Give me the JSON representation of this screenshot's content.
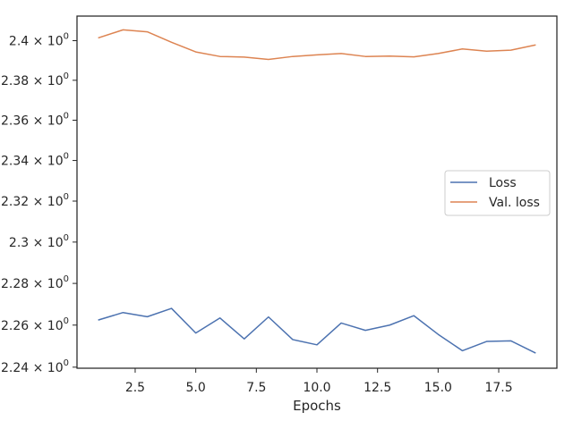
{
  "chart_data": {
    "type": "line",
    "title": "",
    "xlabel": "Epochs",
    "ylabel": "",
    "xlim": [
      0.1,
      19.9
    ],
    "ylim": [
      2.2395,
      2.4125
    ],
    "yscale": "log",
    "grid": false,
    "legend_position": "center-right",
    "x_ticks": [
      {
        "value": 2.5,
        "label": "2.5"
      },
      {
        "value": 5.0,
        "label": "5.0"
      },
      {
        "value": 7.5,
        "label": "7.5"
      },
      {
        "value": 10.0,
        "label": "10.0"
      },
      {
        "value": 12.5,
        "label": "12.5"
      },
      {
        "value": 15.0,
        "label": "15.0"
      },
      {
        "value": 17.5,
        "label": "17.5"
      }
    ],
    "y_ticks": [
      {
        "value": 2.24,
        "mantissa": "2.24"
      },
      {
        "value": 2.26,
        "mantissa": "2.26"
      },
      {
        "value": 2.28,
        "mantissa": "2.28"
      },
      {
        "value": 2.3,
        "mantissa": "2.3"
      },
      {
        "value": 2.32,
        "mantissa": "2.32"
      },
      {
        "value": 2.34,
        "mantissa": "2.34"
      },
      {
        "value": 2.36,
        "mantissa": "2.36"
      },
      {
        "value": 2.38,
        "mantissa": "2.38"
      },
      {
        "value": 2.4,
        "mantissa": "2.4"
      }
    ],
    "y_tick_multiplier": "×",
    "y_tick_base": "10",
    "y_tick_exponent": "0",
    "x": [
      1,
      2,
      3,
      4,
      5,
      6,
      7,
      8,
      9,
      10,
      11,
      12,
      13,
      14,
      15,
      16,
      17,
      18,
      19
    ],
    "series": [
      {
        "name": "Loss",
        "color": "#4c72b0",
        "values": [
          2.2625,
          2.266,
          2.264,
          2.268,
          2.2562,
          2.2634,
          2.2534,
          2.2639,
          2.2531,
          2.2506,
          2.261,
          2.2575,
          2.26,
          2.2645,
          2.2556,
          2.2478,
          2.2522,
          2.2525,
          2.2468
        ]
      },
      {
        "name": "Val. loss",
        "color": "#dd8452",
        "values": [
          2.4015,
          2.4055,
          2.4045,
          2.3992,
          2.3943,
          2.392,
          2.3917,
          2.3905,
          2.392,
          2.3928,
          2.3935,
          2.392,
          2.3922,
          2.3918,
          2.3935,
          2.3958,
          2.3947,
          2.3952,
          2.3978
        ]
      }
    ]
  }
}
